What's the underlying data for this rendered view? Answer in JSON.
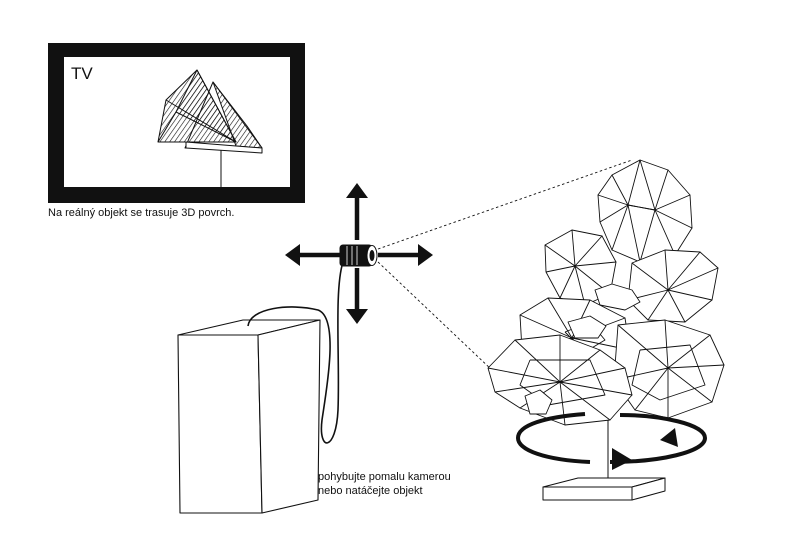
{
  "tv": {
    "label": "TV",
    "caption": "Na reálný objekt se trasuje 3D povrch."
  },
  "instruction": {
    "line1": "pohybujte pomalu kamerou",
    "line2": "nebo natáčejte objekt"
  },
  "colors": {
    "ink": "#111111",
    "background": "#ffffff"
  },
  "icons": {
    "camera": "camera-icon",
    "move_arrows": "four-way-arrows-icon",
    "rotate_arrow": "rotate-arrow-icon"
  }
}
